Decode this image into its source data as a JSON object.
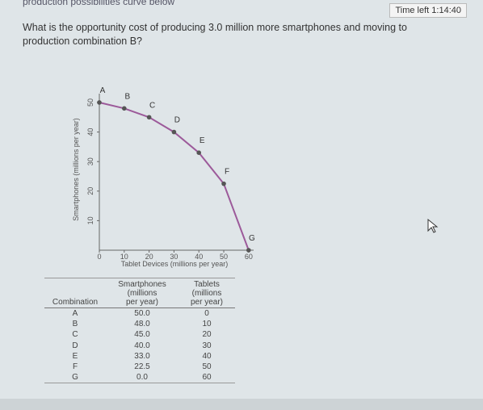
{
  "header": {
    "title": "production possibilities curve below",
    "timer": "Time left 1:14:40"
  },
  "question": "What is the opportunity cost of producing 3.0 million more smartphones and moving to production combination B?",
  "chart_data": {
    "type": "line",
    "x_label": "Tablet Devices (millions per year)",
    "y_label": "Smartphones (millions per year)",
    "x": [
      0,
      10,
      20,
      30,
      40,
      50,
      60
    ],
    "series": [
      {
        "name": "Production possibilities",
        "color": "#9c5a9a",
        "values": [
          50,
          48,
          45,
          40,
          33,
          22.5,
          0
        ]
      }
    ],
    "point_labels": [
      "A",
      "B",
      "C",
      "D",
      "E",
      "F",
      "G"
    ],
    "xlim": [
      0,
      62
    ],
    "ylim": [
      0,
      53
    ],
    "xticks": [
      0,
      10,
      20,
      30,
      40,
      50,
      60
    ],
    "yticks": [
      10,
      20,
      30,
      40,
      50
    ]
  },
  "table": {
    "headers": [
      [
        "Combination"
      ],
      [
        "Smartphones",
        "(millions",
        "per year)"
      ],
      [
        "Tablets",
        "(millions",
        "per year)"
      ]
    ],
    "rows": [
      [
        "A",
        "50.0",
        "0"
      ],
      [
        "B",
        "48.0",
        "10"
      ],
      [
        "C",
        "45.0",
        "20"
      ],
      [
        "D",
        "40.0",
        "30"
      ],
      [
        "E",
        "33.0",
        "40"
      ],
      [
        "F",
        "22.5",
        "50"
      ],
      [
        "G",
        "0.0",
        "60"
      ]
    ]
  }
}
